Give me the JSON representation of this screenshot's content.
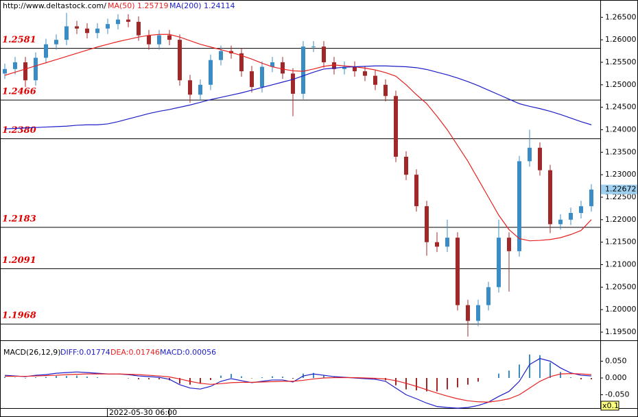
{
  "chart_data": [
    {
      "type": "candlestick",
      "source": "http://www.deltastock.com/",
      "candles": [
        [
          1.2525,
          1.2547,
          1.2513,
          1.2535
        ],
        [
          1.2535,
          1.2562,
          1.2523,
          1.255
        ],
        [
          1.255,
          1.2562,
          1.2495,
          1.251
        ],
        [
          1.251,
          1.2572,
          1.2498,
          1.256
        ],
        [
          1.256,
          1.2602,
          1.2548,
          1.259
        ],
        [
          1.259,
          1.2612,
          1.2578,
          1.26
        ],
        [
          1.26,
          1.266,
          1.2588,
          1.263
        ],
        [
          1.263,
          1.2642,
          1.2613,
          1.2625
        ],
        [
          1.2625,
          1.2637,
          1.2603,
          1.2615
        ],
        [
          1.2615,
          1.2637,
          1.2603,
          1.2625
        ],
        [
          1.2625,
          1.2647,
          1.2613,
          1.2635
        ],
        [
          1.2635,
          1.2657,
          1.2623,
          1.2645
        ],
        [
          1.2645,
          1.2657,
          1.2628,
          1.264
        ],
        [
          1.264,
          1.2652,
          1.2598,
          1.261
        ],
        [
          1.261,
          1.2622,
          1.2578,
          1.259
        ],
        [
          1.259,
          1.2622,
          1.2578,
          1.261
        ],
        [
          1.261,
          1.2622,
          1.2588,
          1.26
        ],
        [
          1.26,
          1.2612,
          1.2498,
          1.251
        ],
        [
          1.251,
          1.2522,
          1.246,
          1.2478
        ],
        [
          1.2478,
          1.2512,
          1.2466,
          1.25
        ],
        [
          1.25,
          1.2567,
          1.2488,
          1.2555
        ],
        [
          1.2555,
          1.2587,
          1.2543,
          1.2575
        ],
        [
          1.2575,
          1.2587,
          1.2558,
          1.257
        ],
        [
          1.257,
          1.2582,
          1.2518,
          1.253
        ],
        [
          1.253,
          1.2542,
          1.2483,
          1.2495
        ],
        [
          1.2495,
          1.2552,
          1.2483,
          1.254
        ],
        [
          1.254,
          1.2562,
          1.2528,
          1.255
        ],
        [
          1.255,
          1.2562,
          1.2513,
          1.2525
        ],
        [
          1.2525,
          1.2537,
          1.243,
          1.248
        ],
        [
          1.248,
          1.2597,
          1.2468,
          1.2585
        ],
        [
          1.2585,
          1.2597,
          1.2573,
          1.2585
        ],
        [
          1.2585,
          1.2597,
          1.2538,
          1.255
        ],
        [
          1.255,
          1.2562,
          1.2523,
          1.2535
        ],
        [
          1.2535,
          1.2552,
          1.2523,
          1.254
        ],
        [
          1.254,
          1.2552,
          1.2518,
          1.253
        ],
        [
          1.253,
          1.2542,
          1.2508,
          1.252
        ],
        [
          1.252,
          1.2532,
          1.2488,
          1.25
        ],
        [
          1.25,
          1.2512,
          1.2463,
          1.2475
        ],
        [
          1.2475,
          1.2487,
          1.2328,
          1.234
        ],
        [
          1.234,
          1.2352,
          1.2288,
          1.23
        ],
        [
          1.23,
          1.2312,
          1.2218,
          1.223
        ],
        [
          1.223,
          1.2242,
          1.212,
          1.215
        ],
        [
          1.215,
          1.2172,
          1.2128,
          1.214
        ],
        [
          1.214,
          1.22,
          1.2128,
          1.216
        ],
        [
          1.216,
          1.2172,
          1.1998,
          1.201
        ],
        [
          1.201,
          1.2022,
          1.194,
          1.1975
        ],
        [
          1.1975,
          1.2022,
          1.1963,
          1.201
        ],
        [
          1.201,
          1.2062,
          1.1998,
          1.205
        ],
        [
          1.205,
          1.22,
          1.2038,
          1.216
        ],
        [
          1.216,
          1.2172,
          1.204,
          1.213
        ],
        [
          1.213,
          1.2342,
          1.2118,
          1.233
        ],
        [
          1.233,
          1.24,
          1.2318,
          1.236
        ],
        [
          1.236,
          1.2372,
          1.2298,
          1.231
        ],
        [
          1.231,
          1.2322,
          1.217,
          1.219
        ],
        [
          1.219,
          1.2212,
          1.2178,
          1.22
        ],
        [
          1.22,
          1.2227,
          1.2188,
          1.2215
        ],
        [
          1.2215,
          1.2242,
          1.2203,
          1.223
        ],
        [
          1.223,
          1.2279,
          1.2218,
          1.2267
        ]
      ],
      "up_color": "#3a8cc4",
      "down_color": "#a02828",
      "series": [
        {
          "name": "MA(50)",
          "current": 1.25719,
          "color": "#e82020",
          "values": [
            1.2521,
            1.2528,
            1.2535,
            1.2542,
            1.2549,
            1.2556,
            1.2563,
            1.257,
            1.2577,
            1.2584,
            1.259,
            1.2596,
            1.2601,
            1.2606,
            1.261,
            1.2612,
            1.2612,
            1.2606,
            1.2598,
            1.259,
            1.2584,
            1.2578,
            1.2572,
            1.2565,
            1.2557,
            1.2548,
            1.254,
            1.2535,
            1.2531,
            1.253,
            1.2535,
            1.2541,
            1.2544,
            1.2542,
            1.254,
            1.2537,
            1.2533,
            1.2527,
            1.2519,
            1.25,
            1.2478,
            1.2458,
            1.243,
            1.24,
            1.2365,
            1.233,
            1.229,
            1.225,
            1.221,
            1.2178,
            1.2158,
            1.2153,
            1.2154,
            1.2156,
            1.216,
            1.2167,
            1.2176,
            1.22
          ]
        },
        {
          "name": "MA(200)",
          "current": 1.24114,
          "color": "#1c1cc8",
          "values": [
            1.2402,
            1.2403,
            1.2404,
            1.2405,
            1.2406,
            1.2407,
            1.2408,
            1.241,
            1.2411,
            1.2411,
            1.2413,
            1.2418,
            1.2424,
            1.243,
            1.2436,
            1.2441,
            1.2445,
            1.245,
            1.2455,
            1.2461,
            1.2467,
            1.2472,
            1.2477,
            1.2482,
            1.2488,
            1.2494,
            1.25,
            1.2506,
            1.2512,
            1.252,
            1.2528,
            1.2535,
            1.2537,
            1.2539,
            1.254,
            1.2541,
            1.2542,
            1.2542,
            1.2541,
            1.254,
            1.2538,
            1.2534,
            1.2528,
            1.2522,
            1.2515,
            1.2507,
            1.2498,
            1.2488,
            1.2478,
            1.2468,
            1.2458,
            1.2452,
            1.2447,
            1.2441,
            1.2434,
            1.2426,
            1.2418,
            1.2411
          ]
        }
      ],
      "levels": [
        {
          "value": 1.2581,
          "label": "1.2581"
        },
        {
          "value": 1.2466,
          "label": "1.2466"
        },
        {
          "value": 1.238,
          "label": "1.2380"
        },
        {
          "value": 1.2183,
          "label": "1.2183"
        },
        {
          "value": 1.2091,
          "label": "1.2091"
        },
        {
          "value": 1.1968,
          "label": "1.1968"
        }
      ],
      "last": 1.22672,
      "ylim": [
        1.19333,
        1.26885
      ],
      "yticks": [
        {
          "value": 1.195,
          "label": "1.19500"
        },
        {
          "value": 1.2,
          "label": "1.20000"
        },
        {
          "value": 1.205,
          "label": "1.20500"
        },
        {
          "value": 1.21,
          "label": "1.21000"
        },
        {
          "value": 1.215,
          "label": "1.21500"
        },
        {
          "value": 1.22,
          "label": "1.22000"
        },
        {
          "value": 1.225,
          "label": "1.22500"
        },
        {
          "value": 1.23,
          "label": "1.23000"
        },
        {
          "value": 1.235,
          "label": "1.23500"
        },
        {
          "value": 1.24,
          "label": "1.24000"
        },
        {
          "value": 1.245,
          "label": "1.24500"
        },
        {
          "value": 1.25,
          "label": "1.25000"
        },
        {
          "value": 1.255,
          "label": "1.25500"
        },
        {
          "value": 1.26,
          "label": "1.26000"
        },
        {
          "value": 1.265,
          "label": "1.26500"
        }
      ]
    },
    {
      "type": "macd",
      "title": "MACD(26,12,9)",
      "series": [
        {
          "name": "DIFF:0.01774",
          "color": "#1c1cc8",
          "values": [
            0.008,
            0.006,
            0.004,
            0.008,
            0.01,
            0.014,
            0.016,
            0.018,
            0.016,
            0.014,
            0.012,
            0.012,
            0.01,
            0.006,
            0.004,
            0.002,
            -0.004,
            -0.02,
            -0.03,
            -0.033,
            -0.025,
            -0.01,
            -0.002,
            -0.008,
            -0.014,
            -0.01,
            -0.006,
            -0.006,
            -0.012,
            0.006,
            0.012,
            0.008,
            0.004,
            0.002,
            0.0,
            -0.002,
            -0.004,
            -0.01,
            -0.03,
            -0.05,
            -0.062,
            -0.075,
            -0.085,
            -0.088,
            -0.09,
            -0.088,
            -0.082,
            -0.072,
            -0.055,
            -0.04,
            -0.01,
            0.04,
            0.058,
            0.05,
            0.03,
            0.015,
            0.008,
            0.006
          ]
        },
        {
          "name": "DEA:0.01746",
          "color": "#e82020",
          "values": [
            0.005,
            0.005,
            0.005,
            0.006,
            0.007,
            0.008,
            0.01,
            0.011,
            0.012,
            0.012,
            0.012,
            0.012,
            0.011,
            0.01,
            0.008,
            0.006,
            0.003,
            -0.003,
            -0.01,
            -0.016,
            -0.019,
            -0.017,
            -0.014,
            -0.013,
            -0.013,
            -0.012,
            -0.011,
            -0.01,
            -0.01,
            -0.007,
            -0.003,
            0.0,
            0.001,
            0.001,
            0.001,
            0.0,
            -0.001,
            -0.003,
            -0.008,
            -0.016,
            -0.025,
            -0.035,
            -0.045,
            -0.054,
            -0.062,
            -0.068,
            -0.071,
            -0.072,
            -0.068,
            -0.062,
            -0.05,
            -0.03,
            -0.01,
            0.004,
            0.012,
            0.013,
            0.012,
            0.01
          ]
        }
      ],
      "histogram": {
        "name": "MACD:0.00056",
        "color": "#1c1cc8",
        "up_color": "#3a8cc4",
        "down_color": "#a02828",
        "values": [
          0.003,
          0.001,
          -0.001,
          0.002,
          0.003,
          0.006,
          0.006,
          0.007,
          0.004,
          0.002,
          0,
          0,
          -0.001,
          -0.004,
          -0.004,
          -0.004,
          -0.007,
          -0.017,
          -0.02,
          -0.017,
          -0.006,
          0.007,
          0.012,
          0.005,
          -0.001,
          0.002,
          0.005,
          0.004,
          -0.002,
          0.013,
          0.015,
          0.008,
          0.003,
          0.001,
          -0.001,
          -0.002,
          -0.003,
          -0.007,
          -0.022,
          -0.034,
          -0.037,
          -0.04,
          -0.04,
          -0.034,
          -0.028,
          -0.02,
          -0.011,
          0,
          0.013,
          0.022,
          0.04,
          0.07,
          0.068,
          0.046,
          0.018,
          0.002,
          -0.004,
          -0.004
        ]
      },
      "ylim": [
        -0.0898,
        0.1061
      ],
      "yticks": [
        {
          "value": 0.05,
          "label": "0.050"
        },
        {
          "value": 0,
          "label": "0.000"
        },
        {
          "value": -0.05,
          "label": "-0.050"
        }
      ],
      "x_label": "2022-05-30 06:00",
      "scale_label": "x0.1"
    }
  ]
}
